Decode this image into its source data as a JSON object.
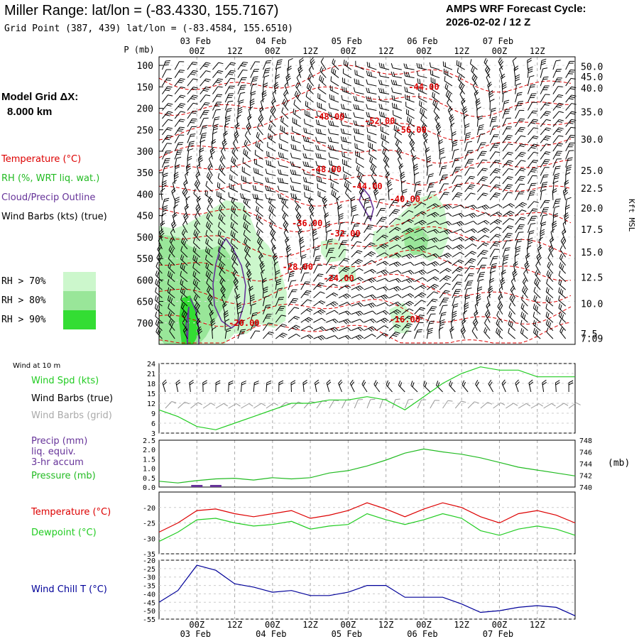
{
  "header": {
    "title": "Miller Range:  lat/lon = (-83.4330, 155.7167)",
    "subtitle": "Grid Point (387, 439) lat/lon = (-83.4584, 155.6510)",
    "cycle_line1": "AMPS WRF Forecast Cycle:",
    "cycle_line2": "2026-02-02 / 12  Z"
  },
  "model_grid": {
    "line1": "Model Grid ΔX:",
    "line2": "8.000 km"
  },
  "colors": {
    "temperature": "#dd0000",
    "rh": "#22bb22",
    "cloud": "#663399",
    "wind_speed": "#22cc22",
    "barb_grid": "#999999",
    "precip": "#663399",
    "pressure": "#22bb22",
    "dewpoint": "#22cc22",
    "wind_chill": "#000099",
    "rh70": "#ccf7cc",
    "rh80": "#99e699",
    "rh90": "#33dd33",
    "grid": "#aaaaaa"
  },
  "legend": {
    "temperature": "Temperature (°C)",
    "rh": "RH (%, WRT liq. wat.)",
    "cloud": "Cloud/Precip Outline",
    "wind_barbs": "Wind Barbs (kts) (true)",
    "rh70": "RH > 70%",
    "rh80": "RH > 80%",
    "rh90": "RH > 90%"
  },
  "sfc_legend": {
    "wind_at_10m": "Wind at 10 m",
    "wind_spd": "Wind Spd (kts)",
    "wind_barbs_true": "Wind Barbs (true)",
    "wind_barbs_grid": "Wind Barbs (grid)"
  },
  "precip_legend": {
    "precip": "Precip (mm)",
    "liq": "liq. equiv.",
    "accum": "3-hr accum",
    "pressure": "Pressure (mb)"
  },
  "temp_legend": {
    "temperature": "Temperature (°C)",
    "dewpoint": "Dewpoint (°C)"
  },
  "chill_legend": {
    "wind_chill": "Wind Chill T (°C)"
  },
  "chart_data": [
    {
      "type": "heatmap",
      "id": "cross_section",
      "x_hours": [
        0,
        132
      ],
      "x_top_date_labels": [
        {
          "label": "03 Feb",
          "hour": 12
        },
        {
          "label": "04 Feb",
          "hour": 36
        },
        {
          "label": "05 Feb",
          "hour": 60
        },
        {
          "label": "06 Feb",
          "hour": 84
        },
        {
          "label": "07 Feb",
          "hour": 108
        }
      ],
      "x_hour_labels": [
        {
          "label": "00Z",
          "hour": 12
        },
        {
          "label": "12Z",
          "hour": 24
        },
        {
          "label": "00Z",
          "hour": 36
        },
        {
          "label": "12Z",
          "hour": 48
        },
        {
          "label": "00Z",
          "hour": 60
        },
        {
          "label": "12Z",
          "hour": 72
        },
        {
          "label": "00Z",
          "hour": 84
        },
        {
          "label": "12Z",
          "hour": 96
        },
        {
          "label": "00Z",
          "hour": 108
        },
        {
          "label": "12Z",
          "hour": 120
        }
      ],
      "left_axis_title": "P (mb)",
      "pressure_ticks": [
        {
          "label": "100",
          "p": 100
        },
        {
          "label": "150",
          "p": 150
        },
        {
          "label": "200",
          "p": 200
        },
        {
          "label": "250",
          "p": 250
        },
        {
          "label": "300",
          "p": 300
        },
        {
          "label": "350",
          "p": 350
        },
        {
          "label": "400",
          "p": 400
        },
        {
          "label": "450",
          "p": 450
        },
        {
          "label": "500",
          "p": 500
        },
        {
          "label": "550",
          "p": 550
        },
        {
          "label": "600",
          "p": 600
        },
        {
          "label": "650",
          "p": 650
        },
        {
          "label": "700",
          "p": 700
        }
      ],
      "p_range": [
        80,
        750
      ],
      "right_axis_title": "Kft MSL",
      "height_ticks": [
        {
          "label": "50.0",
          "p": 102
        },
        {
          "label": "45.0",
          "p": 126
        },
        {
          "label": "40.0",
          "p": 153
        },
        {
          "label": "35.0",
          "p": 208
        },
        {
          "label": "30.0",
          "p": 272
        },
        {
          "label": "25.0",
          "p": 345
        },
        {
          "label": "22.5",
          "p": 386
        },
        {
          "label": "20.0",
          "p": 432
        },
        {
          "label": "17.5",
          "p": 482
        },
        {
          "label": "15.0",
          "p": 535
        },
        {
          "label": "12.5",
          "p": 594
        },
        {
          "label": "10.0",
          "p": 655
        },
        {
          "label": "7.5",
          "p": 725
        },
        {
          "label": "7.09",
          "p": 736
        }
      ],
      "temperature_labels": [
        {
          "label": "-44.00",
          "hour": 84,
          "p": 150
        },
        {
          "label": "-48.00",
          "hour": 54,
          "p": 220
        },
        {
          "label": "-52.00",
          "hour": 70,
          "p": 230
        },
        {
          "label": "-56.00",
          "hour": 80,
          "p": 250
        },
        {
          "label": "-48.00",
          "hour": 53,
          "p": 342
        },
        {
          "label": "-44.00",
          "hour": 66,
          "p": 382
        },
        {
          "label": "-40.00",
          "hour": 78,
          "p": 412
        },
        {
          "label": "-36.00",
          "hour": 47,
          "p": 468
        },
        {
          "label": "-32.00",
          "hour": 59,
          "p": 492
        },
        {
          "label": "-28.00",
          "hour": 44,
          "p": 570
        },
        {
          "label": "-24.00",
          "hour": 57,
          "p": 596
        },
        {
          "label": "-20.00",
          "hour": 27,
          "p": 700
        },
        {
          "label": "-16.00",
          "hour": 78,
          "p": 692
        }
      ]
    },
    {
      "type": "line",
      "id": "wind_speed",
      "ylabel": "",
      "y_ticks": [
        3,
        6,
        9,
        12,
        15,
        18,
        21,
        24
      ],
      "ylim": [
        3,
        24
      ],
      "x": [
        0,
        6,
        12,
        18,
        24,
        30,
        36,
        42,
        48,
        54,
        60,
        66,
        72,
        78,
        84,
        90,
        96,
        102,
        108,
        114,
        120,
        126,
        132
      ],
      "series": [
        {
          "name": "Wind Spd (kts)",
          "values": [
            10,
            8,
            5,
            4,
            6,
            8,
            10,
            12,
            12,
            13,
            13,
            14,
            13,
            10,
            14,
            18,
            21,
            23,
            22,
            22,
            20,
            20,
            20
          ]
        }
      ]
    },
    {
      "type": "line",
      "id": "precip_pressure",
      "y_ticks_left": [
        0.0,
        0.5,
        1.0,
        1.5,
        2.0,
        2.5
      ],
      "ylim_left": [
        0,
        2.5
      ],
      "y_ticks_right": [
        740,
        742,
        744,
        746,
        748
      ],
      "ylim_right": [
        740,
        748
      ],
      "right_unit": "(mb)",
      "x": [
        0,
        6,
        12,
        18,
        24,
        30,
        36,
        42,
        48,
        54,
        60,
        66,
        72,
        78,
        84,
        90,
        96,
        102,
        108,
        114,
        120,
        126,
        132
      ],
      "series": [
        {
          "name": "Pressure (mb)",
          "values": [
            741.0,
            740.7,
            741.1,
            741.4,
            741.5,
            741.2,
            741.6,
            741.4,
            741.6,
            742.4,
            742.8,
            743.6,
            744.6,
            745.8,
            746.5,
            746.0,
            745.6,
            745.0,
            744.2,
            743.4,
            742.9,
            742.4,
            741.9
          ]
        },
        {
          "name": "Precip (mm)",
          "values": [
            0,
            0,
            0.02,
            0.02,
            0,
            0,
            0,
            0,
            0,
            0,
            0,
            0,
            0,
            0,
            0,
            0,
            0,
            0,
            0,
            0,
            0,
            0,
            0
          ]
        }
      ]
    },
    {
      "type": "line",
      "id": "temp_dewpoint",
      "y_ticks": [
        -35,
        -30,
        -25,
        -20
      ],
      "ylim": [
        -35,
        -15
      ],
      "x": [
        0,
        6,
        12,
        18,
        24,
        30,
        36,
        42,
        48,
        54,
        60,
        66,
        72,
        78,
        84,
        90,
        96,
        102,
        108,
        114,
        120,
        126,
        132
      ],
      "series": [
        {
          "name": "Temperature (°C)",
          "values": [
            -28,
            -25,
            -21,
            -20.5,
            -22,
            -23,
            -22,
            -21,
            -23.5,
            -22.5,
            -21,
            -18.5,
            -20.5,
            -23,
            -20.5,
            -18.5,
            -20,
            -23,
            -25,
            -22,
            -21,
            -22.5,
            -25
          ]
        },
        {
          "name": "Dewpoint (°C)",
          "values": [
            -31,
            -28,
            -24,
            -23.5,
            -25,
            -26,
            -25.5,
            -24.5,
            -27,
            -26,
            -25.5,
            -22,
            -24,
            -25.5,
            -24,
            -22,
            -23.5,
            -27.5,
            -29,
            -27,
            -26,
            -27,
            -29
          ]
        }
      ]
    },
    {
      "type": "line",
      "id": "wind_chill",
      "y_ticks": [
        -55,
        -50,
        -45,
        -40,
        -35,
        -30,
        -25,
        -20
      ],
      "ylim": [
        -55,
        -20
      ],
      "x": [
        0,
        6,
        12,
        18,
        24,
        30,
        36,
        42,
        48,
        54,
        60,
        66,
        72,
        78,
        84,
        90,
        96,
        102,
        108,
        114,
        120,
        126,
        132
      ],
      "series": [
        {
          "name": "Wind Chill T (°C)",
          "values": [
            -45,
            -38,
            -23,
            -26,
            -34,
            -36,
            -39,
            -38,
            -41,
            -41,
            -39,
            -35,
            -35,
            -42,
            -42,
            -42,
            -46,
            -51,
            -50,
            -48,
            -47,
            -48,
            -53
          ]
        }
      ]
    }
  ]
}
